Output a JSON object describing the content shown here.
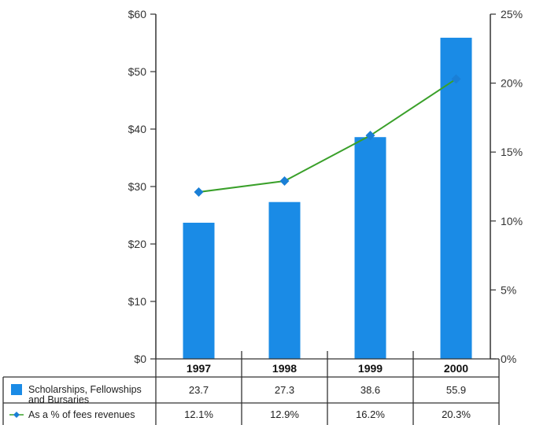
{
  "chart_data": {
    "type": "bar",
    "categories": [
      "1997",
      "1998",
      "1999",
      "2000"
    ],
    "series": [
      {
        "name": "Scholarships, Fellowships and Bursaries",
        "name_lines": [
          "Scholarships, Fellowships",
          "and Bursaries"
        ],
        "type": "bar",
        "axis": "left",
        "values": [
          23.7,
          27.3,
          38.6,
          55.9
        ],
        "table_values": [
          "23.7",
          "27.3",
          "38.6",
          "55.9"
        ],
        "color": "#1a8be6"
      },
      {
        "name": "As a % of fees revenues",
        "type": "line",
        "axis": "right",
        "values": [
          12.1,
          12.9,
          16.2,
          20.3
        ],
        "table_values": [
          "12.1%",
          "12.9%",
          "16.2%",
          "20.3%"
        ],
        "line_color": "#3aa02a",
        "marker_color": "#1a7fd6"
      }
    ],
    "y_left": {
      "ylim": [
        0,
        60
      ],
      "ticks": [
        0,
        10,
        20,
        30,
        40,
        50,
        60
      ],
      "tick_labels": [
        "$0",
        "$10",
        "$20",
        "$30",
        "$40",
        "$50",
        "$60"
      ]
    },
    "y_right": {
      "ylim": [
        0,
        25
      ],
      "ticks": [
        0,
        5,
        10,
        15,
        20,
        25
      ],
      "tick_labels": [
        "0%",
        "5%",
        "10%",
        "15%",
        "20%",
        "25%"
      ]
    },
    "title": "",
    "xlabel": "",
    "legend": "data-table-below"
  }
}
